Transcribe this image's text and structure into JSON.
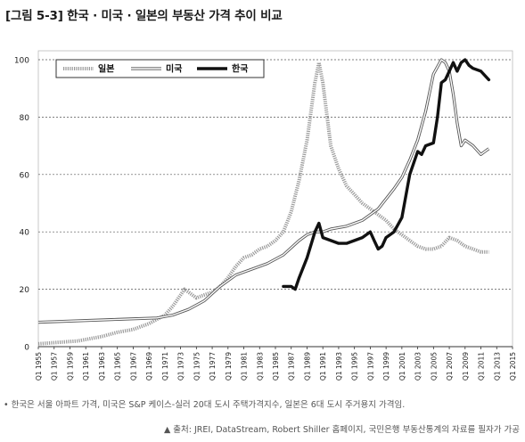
{
  "figure": {
    "title": "[그림 5-3] 한국 · 미국 · 일본의 부동산 가격 추이 비교",
    "note": "• 한국은 서울 아파트 가격, 미국은 S&P 케이스-실러 20대 도시 주택가격지수, 일본은 6대 도시 주거용지 가격임.",
    "source": "▲ 출처: JREI, DataStream, Robert Shiller 홈페이지, 국민은행 부동산통계의 자료를 필자가 가공"
  },
  "chart_data": {
    "type": "line",
    "title": "",
    "xlabel": "",
    "ylabel": "",
    "ylim": [
      0,
      100
    ],
    "xlim": [
      1955,
      2015
    ],
    "yticks": [
      0,
      20,
      40,
      60,
      80,
      100
    ],
    "xtick_labels": [
      "Q1 1955",
      "Q1 1957",
      "Q1 1959",
      "Q1 1961",
      "Q1 1963",
      "Q1 1965",
      "Q1 1967",
      "Q1 1969",
      "Q1 1971",
      "Q1 1973",
      "Q1 1975",
      "Q1 1977",
      "Q1 1979",
      "Q1 1981",
      "Q1 1983",
      "Q1 1985",
      "Q1 1987",
      "Q1 1989",
      "Q1 1991",
      "Q1 1993",
      "Q1 1995",
      "Q1 1997",
      "Q1 1999",
      "Q1 2001",
      "Q1 2003",
      "Q1 2005",
      "Q1 2007",
      "Q1 2009",
      "Q1 2011",
      "Q1 2013",
      "Q1 2015"
    ],
    "grid": "horizontal dashed",
    "legend_position": "top-left",
    "series": [
      {
        "name": "일본",
        "style": "dotted-thick",
        "color": "#9a9a9a",
        "x": [
          1955,
          1960,
          1963,
          1965,
          1967,
          1969,
          1971,
          1972,
          1973,
          1973.5,
          1974,
          1975,
          1976,
          1977,
          1978,
          1979,
          1980,
          1981,
          1982,
          1983,
          1984,
          1985,
          1986,
          1987,
          1988,
          1989,
          1990,
          1990.5,
          1991,
          1992,
          1993,
          1994,
          1995,
          1996,
          1997,
          1998,
          1999,
          2000,
          2001,
          2002,
          2003,
          2004,
          2005,
          2006,
          2007,
          2008,
          2009,
          2010,
          2011,
          2012
        ],
        "y": [
          1,
          2,
          3.5,
          5,
          6,
          8,
          11,
          14,
          18,
          20,
          19,
          17,
          18,
          19,
          21,
          24,
          28,
          31,
          32,
          34,
          35,
          37,
          40,
          47,
          58,
          72,
          92,
          99,
          92,
          70,
          62,
          56,
          53,
          50,
          48,
          46,
          44,
          41,
          39,
          37,
          35,
          34,
          34,
          35,
          38,
          37,
          35,
          34,
          33,
          33
        ]
      },
      {
        "name": "미국",
        "style": "double",
        "color": "#555555",
        "x": [
          1955,
          1960,
          1965,
          1970,
          1972,
          1974,
          1976,
          1978,
          1980,
          1982,
          1984,
          1986,
          1988,
          1989,
          1990,
          1991,
          1992,
          1994,
          1996,
          1998,
          2000,
          2001,
          2002,
          2003,
          2004,
          2005,
          2006,
          2006.5,
          2007,
          2007.5,
          2008,
          2008.5,
          2009,
          2010,
          2011,
          2011.5,
          2012
        ],
        "y": [
          8.5,
          9,
          9.5,
          10,
          11,
          13,
          16,
          21,
          25,
          27,
          29,
          32,
          37,
          39,
          40,
          40,
          41,
          42,
          44,
          48,
          55,
          59,
          65,
          72,
          82,
          95,
          100,
          99,
          96,
          88,
          78,
          70,
          72,
          70,
          67,
          68,
          69
        ]
      },
      {
        "name": "한국",
        "style": "solid-thick",
        "color": "#111111",
        "x": [
          1986,
          1987,
          1987.5,
          1988,
          1989,
          1990,
          1990.5,
          1991,
          1992,
          1993,
          1994,
          1995,
          1996,
          1997,
          1997.5,
          1998,
          1998.5,
          1999,
          2000,
          2001,
          2002,
          2003,
          2003.5,
          2004,
          2005,
          2005.5,
          2006,
          2006.5,
          2007,
          2007.5,
          2008,
          2008.5,
          2009,
          2009.5,
          2010,
          2011,
          2012
        ],
        "y": [
          21,
          21,
          20,
          24,
          31,
          40,
          43,
          38,
          37,
          36,
          36,
          37,
          38,
          40,
          37,
          34,
          35,
          38,
          40,
          45,
          60,
          68,
          67,
          70,
          71,
          80,
          92,
          93,
          96,
          99,
          96,
          99,
          100,
          98,
          97,
          96,
          93
        ]
      }
    ]
  }
}
